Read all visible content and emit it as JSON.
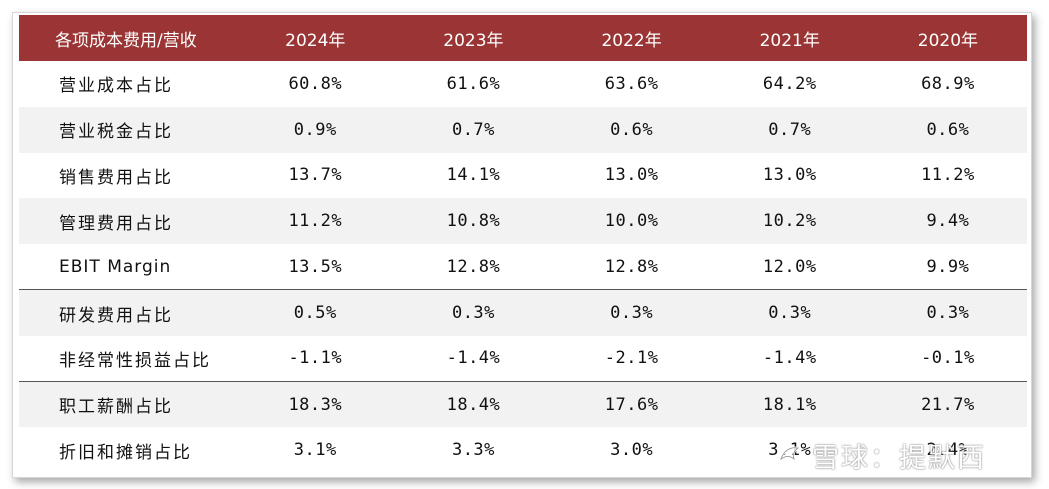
{
  "table": {
    "headers": [
      "各项成本费用/营收",
      "2024年",
      "2023年",
      "2022年",
      "2021年",
      "2020年"
    ],
    "rows": [
      {
        "label": "营业成本占比",
        "values": [
          "60.8%",
          "61.6%",
          "63.6%",
          "64.2%",
          "68.9%"
        ]
      },
      {
        "label": "营业税金占比",
        "values": [
          "0.9%",
          "0.7%",
          "0.6%",
          "0.7%",
          "0.6%"
        ]
      },
      {
        "label": "销售费用占比",
        "values": [
          "13.7%",
          "14.1%",
          "13.0%",
          "13.0%",
          "11.2%"
        ]
      },
      {
        "label": "管理费用占比",
        "values": [
          "11.2%",
          "10.8%",
          "10.0%",
          "10.2%",
          "9.4%"
        ]
      },
      {
        "label": "EBIT Margin",
        "values": [
          "13.5%",
          "12.8%",
          "12.8%",
          "12.0%",
          "9.9%"
        ]
      },
      {
        "label": "研发费用占比",
        "values": [
          "0.5%",
          "0.3%",
          "0.3%",
          "0.3%",
          "0.3%"
        ]
      },
      {
        "label": "非经常性损益占比",
        "values": [
          "-1.1%",
          "-1.4%",
          "-2.1%",
          "-1.4%",
          "-0.1%"
        ]
      },
      {
        "label": "职工薪酬占比",
        "values": [
          "18.3%",
          "18.4%",
          "17.6%",
          "18.1%",
          "21.7%"
        ]
      },
      {
        "label": "折旧和摊销占比",
        "values": [
          "3.1%",
          "3.3%",
          "3.0%",
          "3.1%",
          "2.4%"
        ]
      }
    ]
  },
  "watermark": {
    "text": "雪球：提默西",
    "icon": "snowball-logo-icon"
  },
  "colors": {
    "header_bg": "#9b3535",
    "stripe": "#f2f2f2"
  }
}
